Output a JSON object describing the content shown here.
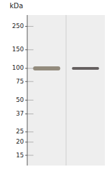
{
  "chart_data": {
    "type": "gel",
    "y_label": "kDa",
    "series": [
      {
        "color": "#888070",
        "values": [
          100
        ]
      },
      {
        "color": "#555050",
        "values": [
          100
        ]
      }
    ],
    "log": "y",
    "ylim": [
      12,
      320
    ],
    "yticks": [
      250,
      150,
      100,
      75,
      50,
      37,
      25,
      20,
      15
    ],
    "tick_labels": "y"
  }
}
